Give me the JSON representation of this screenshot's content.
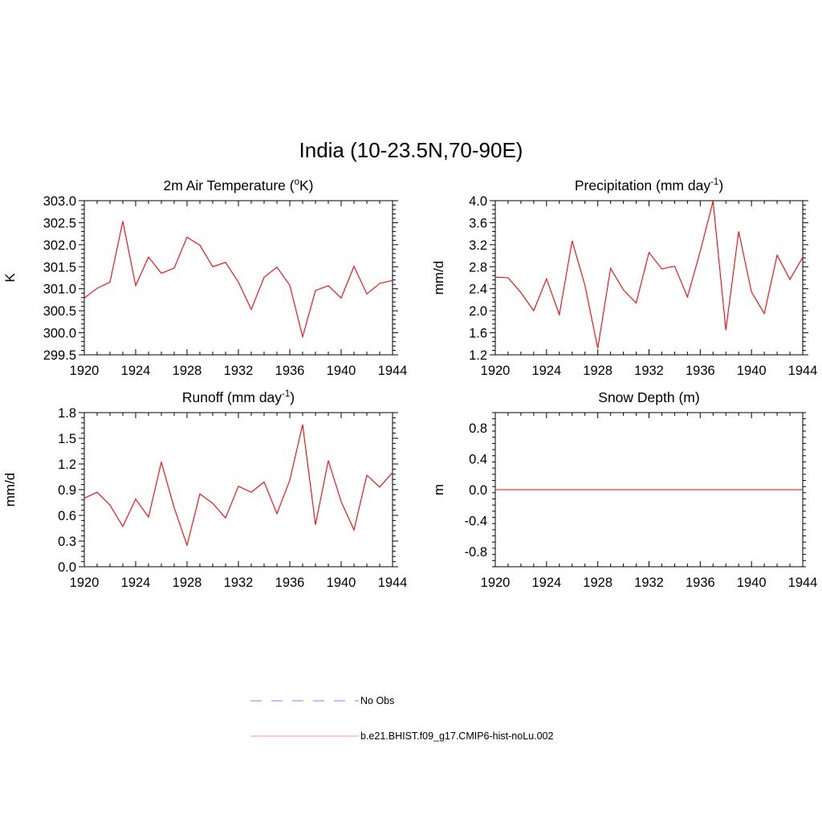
{
  "figure": {
    "title": "India (10-23.5N,70-90E)"
  },
  "colors": {
    "model": "#ff0000",
    "obs": "#9999ff",
    "legend_model": "#ffaaaa",
    "axes": "#000000"
  },
  "legend": {
    "obs_label": "No Obs",
    "model_label": "b.e21.BHIST.f09_g17.CMIP6-hist-noLu.002"
  },
  "chart_data": [
    {
      "type": "line",
      "title": "2m Air Temperature (°K)",
      "title_parts": [
        "2m Air Temperature (",
        "o",
        "K)"
      ],
      "ylabel": "K",
      "xlim": [
        1920,
        1944
      ],
      "xticks": [
        "1920",
        "1924",
        "1928",
        "1932",
        "1936",
        "1940",
        "1944"
      ],
      "ylim": [
        299.5,
        303.0
      ],
      "yticks": [
        "299.5",
        "300.0",
        "300.5",
        "301.0",
        "301.5",
        "302.0",
        "302.5",
        "303.0"
      ],
      "x": [
        1920,
        1921,
        1922,
        1923,
        1924,
        1925,
        1926,
        1927,
        1928,
        1929,
        1930,
        1931,
        1932,
        1933,
        1934,
        1935,
        1936,
        1937,
        1938,
        1939,
        1940,
        1941,
        1942,
        1943,
        1944
      ],
      "series": [
        {
          "name": "b.e21.BHIST.f09_g17.CMIP6-hist-noLu.002",
          "values": [
            300.79,
            301.01,
            301.15,
            302.53,
            301.07,
            301.72,
            301.35,
            301.47,
            302.17,
            301.99,
            301.5,
            301.6,
            301.15,
            300.53,
            301.26,
            301.49,
            301.08,
            299.91,
            300.96,
            301.07,
            300.79,
            301.51,
            300.88,
            301.12,
            301.19
          ]
        }
      ]
    },
    {
      "type": "line",
      "title": "Precipitation (mm day-1)",
      "title_parts": [
        "Precipitation (mm day",
        "-1",
        ")"
      ],
      "ylabel": "mm/d",
      "xlim": [
        1920,
        1944
      ],
      "xticks": [
        "1920",
        "1924",
        "1928",
        "1932",
        "1936",
        "1940",
        "1944"
      ],
      "ylim": [
        1.2,
        4.0
      ],
      "yticks": [
        "1.2",
        "1.6",
        "2.0",
        "2.4",
        "2.8",
        "3.2",
        "3.6",
        "4.0"
      ],
      "x": [
        1920,
        1921,
        1922,
        1923,
        1924,
        1925,
        1926,
        1927,
        1928,
        1929,
        1930,
        1931,
        1932,
        1933,
        1934,
        1935,
        1936,
        1937,
        1938,
        1939,
        1940,
        1941,
        1942,
        1943,
        1944
      ],
      "series": [
        {
          "name": "b.e21.BHIST.f09_g17.CMIP6-hist-noLu.002",
          "values": [
            2.61,
            2.6,
            2.33,
            2.0,
            2.58,
            1.93,
            3.27,
            2.46,
            1.32,
            2.77,
            2.38,
            2.14,
            3.06,
            2.76,
            2.81,
            2.25,
            3.08,
            3.99,
            1.65,
            3.44,
            2.34,
            1.95,
            3.01,
            2.57,
            2.97
          ]
        }
      ]
    },
    {
      "type": "line",
      "title": "Runoff (mm day-1)",
      "title_parts": [
        "Runoff (mm day",
        "-1",
        ")"
      ],
      "ylabel": "mm/d",
      "xlim": [
        1920,
        1944
      ],
      "xticks": [
        "1920",
        "1924",
        "1928",
        "1932",
        "1936",
        "1940",
        "1944"
      ],
      "ylim": [
        0.0,
        1.8
      ],
      "yticks": [
        "0.0",
        "0.3",
        "0.6",
        "0.9",
        "1.2",
        "1.5",
        "1.8"
      ],
      "x": [
        1920,
        1921,
        1922,
        1923,
        1924,
        1925,
        1926,
        1927,
        1928,
        1929,
        1930,
        1931,
        1932,
        1933,
        1934,
        1935,
        1936,
        1937,
        1938,
        1939,
        1940,
        1941,
        1942,
        1943,
        1944
      ],
      "series": [
        {
          "name": "b.e21.BHIST.f09_g17.CMIP6-hist-noLu.002",
          "values": [
            0.8,
            0.87,
            0.72,
            0.47,
            0.79,
            0.58,
            1.22,
            0.69,
            0.25,
            0.85,
            0.74,
            0.57,
            0.94,
            0.87,
            0.99,
            0.62,
            1.01,
            1.66,
            0.49,
            1.24,
            0.76,
            0.43,
            1.07,
            0.93,
            1.1
          ]
        }
      ]
    },
    {
      "type": "line",
      "title": "Snow Depth (m)",
      "title_parts": [
        "Snow Depth (m)",
        "",
        ""
      ],
      "ylabel": "m",
      "xlim": [
        1920,
        1944
      ],
      "xticks": [
        "1920",
        "1924",
        "1928",
        "1932",
        "1936",
        "1940",
        "1944"
      ],
      "ylim": [
        -1.0,
        1.0
      ],
      "yticks": [
        "-0.8",
        "-0.4",
        "0.0",
        "0.4",
        "0.8"
      ],
      "x": [
        1920,
        1921,
        1922,
        1923,
        1924,
        1925,
        1926,
        1927,
        1928,
        1929,
        1930,
        1931,
        1932,
        1933,
        1934,
        1935,
        1936,
        1937,
        1938,
        1939,
        1940,
        1941,
        1942,
        1943,
        1944
      ],
      "series": [
        {
          "name": "b.e21.BHIST.f09_g17.CMIP6-hist-noLu.002",
          "values": [
            0,
            0,
            0,
            0,
            0,
            0,
            0,
            0,
            0,
            0,
            0,
            0,
            0,
            0,
            0,
            0,
            0,
            0,
            0,
            0,
            0,
            0,
            0,
            0,
            0
          ]
        }
      ]
    }
  ]
}
